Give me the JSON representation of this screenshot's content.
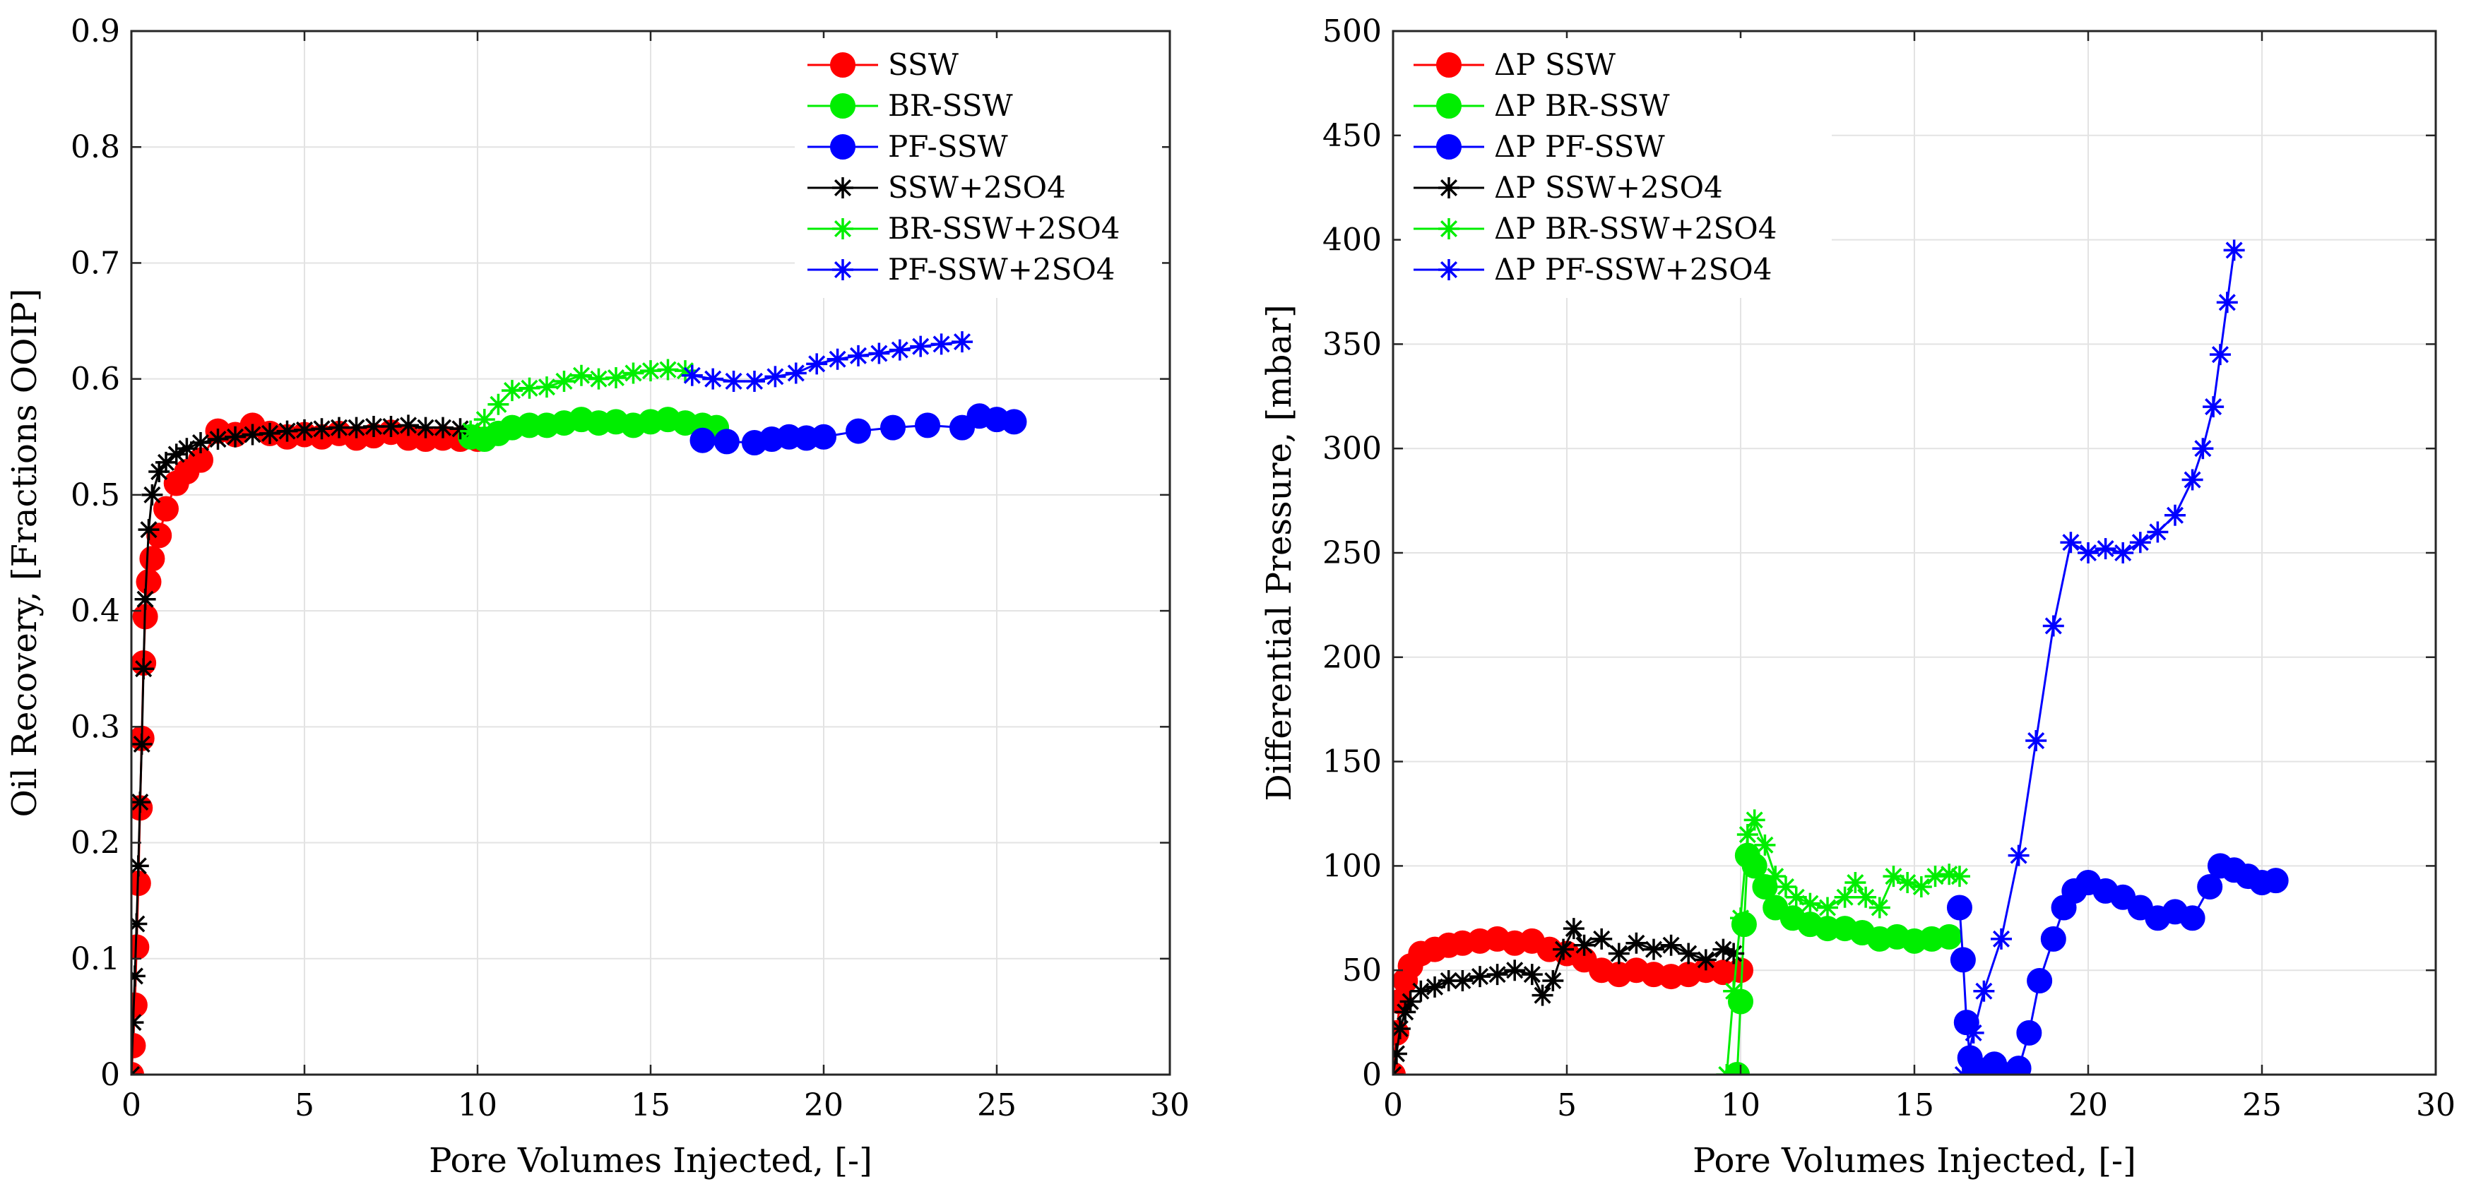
{
  "chart_data": [
    {
      "type": "line",
      "title": "",
      "xlabel": "Pore Volumes Injected, [-]",
      "ylabel": "Oil Recovery, [Fractions OOIP]",
      "xlim": [
        0,
        30
      ],
      "ylim": [
        0,
        0.9
      ],
      "xticks": [
        0,
        5,
        10,
        15,
        20,
        25,
        30
      ],
      "yticks": [
        0,
        0.1,
        0.2,
        0.3,
        0.4,
        0.5,
        0.6,
        0.7,
        0.8,
        0.9
      ],
      "xtick_labels": [
        "0",
        "5",
        "10",
        "15",
        "20",
        "25",
        "30"
      ],
      "ytick_labels": [
        "0",
        "0.1",
        "0.2",
        "0.3",
        "0.4",
        "0.5",
        "0.6",
        "0.7",
        "0.8",
        "0.9"
      ],
      "grid": true,
      "legend_position": "top-right",
      "series": [
        {
          "name": "SSW",
          "color": "#ff0000",
          "marker": "circle",
          "x": [
            0.0,
            0.05,
            0.1,
            0.15,
            0.2,
            0.25,
            0.3,
            0.35,
            0.4,
            0.5,
            0.6,
            0.8,
            1.0,
            1.3,
            1.6,
            2.0,
            2.5,
            3.0,
            3.5,
            4.0,
            4.5,
            5.0,
            5.5,
            6.0,
            6.5,
            7.0,
            7.5,
            8.0,
            8.5,
            9.0,
            9.5,
            10.0
          ],
          "y": [
            0.0,
            0.025,
            0.06,
            0.11,
            0.165,
            0.23,
            0.29,
            0.355,
            0.395,
            0.425,
            0.445,
            0.465,
            0.488,
            0.51,
            0.52,
            0.53,
            0.555,
            0.552,
            0.56,
            0.553,
            0.55,
            0.552,
            0.55,
            0.553,
            0.549,
            0.551,
            0.554,
            0.549,
            0.548,
            0.549,
            0.548,
            0.548
          ]
        },
        {
          "name": "BR-SSW",
          "color": "#00ee00",
          "marker": "circle",
          "x": [
            9.8,
            10.2,
            10.6,
            11.0,
            11.5,
            12.0,
            12.5,
            13.0,
            13.5,
            14.0,
            14.5,
            15.0,
            15.5,
            16.0,
            16.5,
            16.9
          ],
          "y": [
            0.55,
            0.548,
            0.553,
            0.558,
            0.56,
            0.56,
            0.562,
            0.565,
            0.562,
            0.563,
            0.56,
            0.563,
            0.565,
            0.562,
            0.56,
            0.558
          ]
        },
        {
          "name": "PF-SSW",
          "color": "#0000ff",
          "marker": "circle",
          "x": [
            16.5,
            17.2,
            18.0,
            18.5,
            19.0,
            19.5,
            20.0,
            21.0,
            22.0,
            23.0,
            24.0,
            24.5,
            25.0,
            25.5
          ],
          "y": [
            0.547,
            0.546,
            0.545,
            0.548,
            0.55,
            0.549,
            0.55,
            0.555,
            0.558,
            0.56,
            0.558,
            0.568,
            0.565,
            0.563
          ]
        },
        {
          "name": "SSW+2SO4",
          "color": "#000000",
          "marker": "asterisk",
          "x": [
            0.0,
            0.05,
            0.1,
            0.15,
            0.2,
            0.25,
            0.3,
            0.35,
            0.4,
            0.5,
            0.6,
            0.8,
            1.0,
            1.3,
            1.6,
            2.0,
            2.5,
            3.0,
            3.5,
            4.0,
            4.5,
            5.0,
            5.5,
            6.0,
            6.5,
            7.0,
            7.5,
            8.0,
            8.5,
            9.0,
            9.5
          ],
          "y": [
            0.0,
            0.045,
            0.085,
            0.13,
            0.18,
            0.235,
            0.285,
            0.35,
            0.41,
            0.47,
            0.5,
            0.52,
            0.528,
            0.535,
            0.54,
            0.545,
            0.548,
            0.55,
            0.552,
            0.553,
            0.555,
            0.556,
            0.557,
            0.558,
            0.558,
            0.559,
            0.559,
            0.56,
            0.558,
            0.558,
            0.557
          ]
        },
        {
          "name": "BR-SSW+2SO4",
          "color": "#00ee00",
          "marker": "asterisk",
          "x": [
            9.8,
            10.2,
            10.6,
            11.0,
            11.5,
            12.0,
            12.5,
            13.0,
            13.5,
            14.0,
            14.5,
            15.0,
            15.5,
            16.0
          ],
          "y": [
            0.555,
            0.565,
            0.578,
            0.59,
            0.592,
            0.593,
            0.598,
            0.603,
            0.6,
            0.601,
            0.605,
            0.607,
            0.608,
            0.607
          ]
        },
        {
          "name": "PF-SSW+2SO4",
          "color": "#0000ff",
          "marker": "asterisk",
          "x": [
            16.2,
            16.8,
            17.4,
            18.0,
            18.6,
            19.2,
            19.8,
            20.4,
            21.0,
            21.6,
            22.2,
            22.8,
            23.4,
            24.0
          ],
          "y": [
            0.603,
            0.6,
            0.598,
            0.598,
            0.602,
            0.605,
            0.613,
            0.617,
            0.62,
            0.622,
            0.625,
            0.628,
            0.63,
            0.632
          ]
        }
      ]
    },
    {
      "type": "line",
      "title": "",
      "xlabel": "Pore Volumes Injected, [-]",
      "ylabel": "Differential Pressure, [mbar]",
      "xlim": [
        0,
        30
      ],
      "ylim": [
        0,
        500
      ],
      "xticks": [
        0,
        5,
        10,
        15,
        20,
        25,
        30
      ],
      "yticks": [
        0,
        50,
        100,
        150,
        200,
        250,
        300,
        350,
        400,
        450,
        500
      ],
      "xtick_labels": [
        "0",
        "5",
        "10",
        "15",
        "20",
        "25",
        "30"
      ],
      "ytick_labels": [
        "0",
        "50",
        "100",
        "150",
        "200",
        "250",
        "300",
        "350",
        "400",
        "450",
        "500"
      ],
      "grid": true,
      "legend_position": "top-left",
      "series": [
        {
          "name": "ΔP SSW",
          "color": "#ff0000",
          "marker": "circle",
          "x": [
            0.0,
            0.1,
            0.2,
            0.35,
            0.5,
            0.8,
            1.2,
            1.6,
            2.0,
            2.5,
            3.0,
            3.5,
            4.0,
            4.5,
            5.0,
            5.5,
            6.0,
            6.5,
            7.0,
            7.5,
            8.0,
            8.5,
            9.0,
            9.5,
            10.0
          ],
          "y": [
            0,
            20,
            35,
            45,
            52,
            58,
            60,
            62,
            63,
            64,
            65,
            63,
            64,
            60,
            58,
            55,
            50,
            48,
            50,
            48,
            47,
            48,
            50,
            49,
            50
          ]
        },
        {
          "name": "ΔP BR-SSW",
          "color": "#00ee00",
          "marker": "circle",
          "x": [
            9.9,
            10.0,
            10.1,
            10.2,
            10.4,
            10.7,
            11.0,
            11.5,
            12.0,
            12.5,
            13.0,
            13.5,
            14.0,
            14.5,
            15.0,
            15.5,
            16.0
          ],
          "y": [
            0,
            35,
            72,
            105,
            100,
            90,
            80,
            75,
            72,
            70,
            70,
            68,
            65,
            66,
            64,
            65,
            66
          ]
        },
        {
          "name": "ΔP PF-SSW",
          "color": "#0000ff",
          "marker": "circle",
          "x": [
            16.3,
            16.4,
            16.5,
            16.6,
            16.8,
            17.0,
            17.3,
            17.6,
            18.0,
            18.3,
            18.6,
            19.0,
            19.3,
            19.6,
            20.0,
            20.5,
            21.0,
            21.5,
            22.0,
            22.5,
            23.0,
            23.5,
            23.8,
            24.2,
            24.6,
            25.0,
            25.4
          ],
          "y": [
            80,
            55,
            25,
            8,
            2,
            2,
            5,
            0,
            3,
            20,
            45,
            65,
            80,
            88,
            92,
            88,
            85,
            80,
            75,
            78,
            75,
            90,
            100,
            98,
            95,
            92,
            93
          ]
        },
        {
          "name": "ΔP SSW+2SO4",
          "color": "#000000",
          "marker": "asterisk",
          "x": [
            0.0,
            0.1,
            0.2,
            0.35,
            0.5,
            0.8,
            1.2,
            1.6,
            2.0,
            2.5,
            3.0,
            3.5,
            4.0,
            4.3,
            4.6,
            4.9,
            5.2,
            5.5,
            6.0,
            6.5,
            7.0,
            7.5,
            8.0,
            8.5,
            9.0,
            9.5,
            9.8
          ],
          "y": [
            0,
            10,
            22,
            30,
            35,
            40,
            42,
            45,
            45,
            47,
            48,
            50,
            48,
            38,
            45,
            60,
            70,
            62,
            65,
            58,
            63,
            60,
            62,
            58,
            55,
            60,
            58
          ]
        },
        {
          "name": "ΔP BR-SSW+2SO4",
          "color": "#00ee00",
          "marker": "asterisk",
          "x": [
            9.6,
            9.8,
            10.0,
            10.2,
            10.4,
            10.7,
            11.0,
            11.3,
            11.6,
            12.0,
            12.5,
            13.0,
            13.3,
            13.6,
            14.0,
            14.4,
            14.8,
            15.2,
            15.6,
            16.0,
            16.3
          ],
          "y": [
            0,
            40,
            75,
            115,
            122,
            110,
            95,
            90,
            85,
            82,
            80,
            85,
            92,
            85,
            80,
            95,
            92,
            90,
            95,
            96,
            95
          ]
        },
        {
          "name": "ΔP PF-SSW+2SO4",
          "color": "#0000ff",
          "marker": "asterisk",
          "x": [
            16.4,
            16.7,
            17.0,
            17.5,
            18.0,
            18.5,
            19.0,
            19.5,
            20.0,
            20.5,
            21.0,
            21.5,
            22.0,
            22.5,
            23.0,
            23.3,
            23.6,
            23.8,
            24.0,
            24.2
          ],
          "y": [
            0,
            20,
            40,
            65,
            105,
            160,
            215,
            255,
            250,
            252,
            250,
            255,
            260,
            268,
            285,
            300,
            320,
            345,
            370,
            395
          ]
        }
      ]
    }
  ]
}
